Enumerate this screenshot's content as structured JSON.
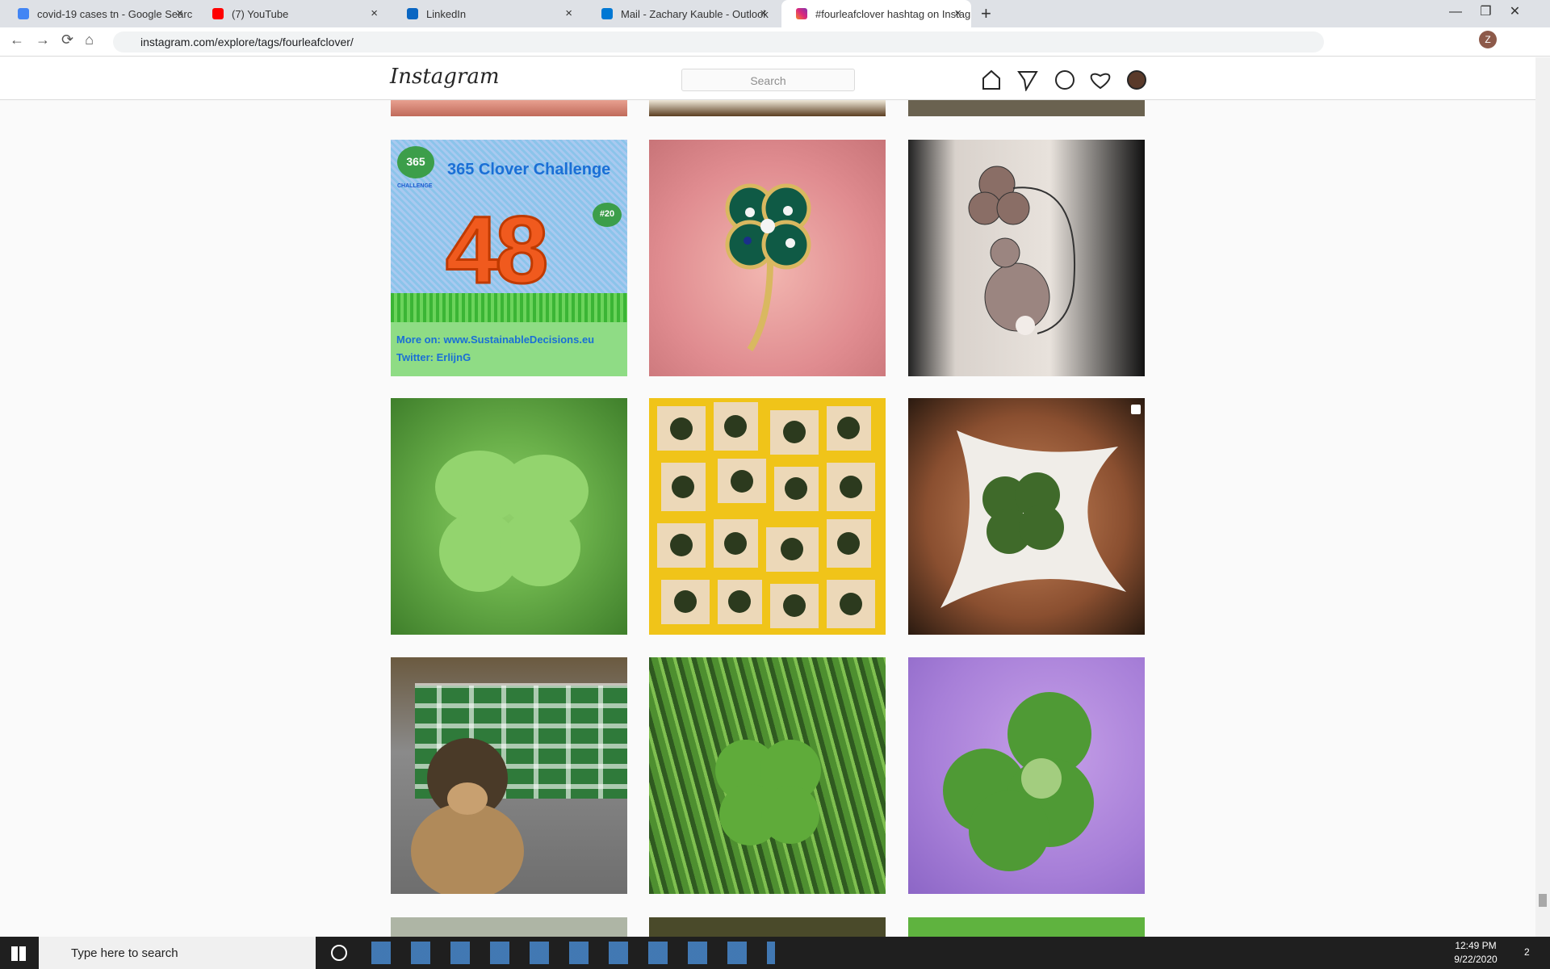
{
  "browser": {
    "tabs": [
      "covid-19 cases tn - Google Searc",
      "(7) YouTube",
      "LinkedIn",
      "Mail - Zachary Kauble - Outlook",
      "#fourleafclover hashtag on Instag"
    ],
    "url": "instagram.com/explore/tags/fourleafclover/",
    "profile_initial": "Z"
  },
  "header": {
    "logo": "Instagram",
    "search_placeholder": "Search"
  },
  "featured_post": {
    "badge": "365",
    "badge_caption": "CHALLENGE",
    "heading": "365 Clover Challenge",
    "episode": "#20",
    "number": "48",
    "lines": [
      "More on: www.SustainableDecisions.eu",
      "Twitter: ErlijnG"
    ]
  },
  "taskbar": {
    "search_placeholder": "Type here to search",
    "time": "12:49 PM",
    "date": "9/22/2020",
    "notifications": "2"
  }
}
